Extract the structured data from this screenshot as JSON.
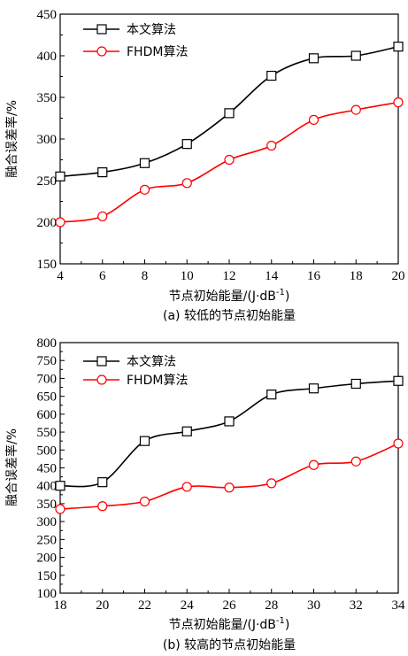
{
  "chart_data": [
    {
      "type": "line",
      "x": [
        4,
        6,
        8,
        10,
        12,
        14,
        16,
        18,
        20
      ],
      "xlim": [
        4,
        20
      ],
      "ylim": [
        150,
        450
      ],
      "xticks": [
        "4",
        "6",
        "8",
        "10",
        "12",
        "14",
        "16",
        "18",
        "20"
      ],
      "yticks": [
        "150",
        "200",
        "250",
        "300",
        "350",
        "400",
        "450"
      ],
      "xlabel": "节点初始能量/(J·dB",
      "xlabel_sup": "-1",
      "xlabel_end": ")",
      "ylabel": "融合误差率/%",
      "caption": "(a) 较低的节点初始能量",
      "legend_position": "top-left",
      "series": [
        {
          "name": "本文算法",
          "marker": "square",
          "color": "#000000",
          "values": [
            255,
            260,
            271,
            294,
            331,
            376,
            397,
            400,
            411
          ]
        },
        {
          "name": "FHDM算法",
          "marker": "circle",
          "color": "#ff0000",
          "values": [
            200,
            207,
            239,
            247,
            275,
            292,
            323,
            335,
            344
          ]
        }
      ]
    },
    {
      "type": "line",
      "x": [
        18,
        20,
        22,
        24,
        26,
        28,
        30,
        32,
        34
      ],
      "xlim": [
        18,
        34
      ],
      "ylim": [
        100,
        800
      ],
      "xticks": [
        "18",
        "20",
        "22",
        "24",
        "26",
        "28",
        "30",
        "32",
        "34"
      ],
      "yticks": [
        "100",
        "150",
        "200",
        "250",
        "300",
        "350",
        "400",
        "450",
        "500",
        "550",
        "600",
        "650",
        "700",
        "750",
        "800"
      ],
      "xlabel": "节点初始能量/(J·dB",
      "xlabel_sup": "-1",
      "xlabel_end": ")",
      "ylabel": "融合误差率/%",
      "caption": "(b) 较高的节点初始能量",
      "legend_position": "top-left",
      "series": [
        {
          "name": "本文算法",
          "marker": "square",
          "color": "#000000",
          "values": [
            400,
            410,
            525,
            552,
            580,
            655,
            672,
            685,
            693
          ]
        },
        {
          "name": "FHDM算法",
          "marker": "circle",
          "color": "#ff0000",
          "values": [
            335,
            343,
            356,
            397,
            395,
            407,
            458,
            468,
            518
          ]
        }
      ]
    }
  ]
}
